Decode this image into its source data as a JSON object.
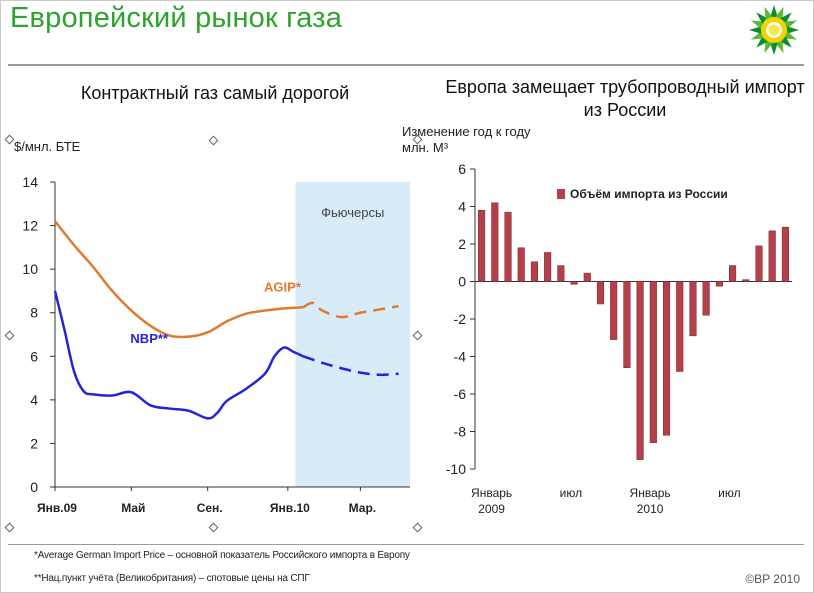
{
  "title": "Европейский рынок газа",
  "copyright": "©BP 2010",
  "footnotes": [
    "*Average German Import Price – основной показатель Российского импорта в Европу",
    "**Нац.пункт учёта (Великобритания) – спотовые цены на СПГ"
  ],
  "logo_icon": "bp-helios-logo",
  "colors": {
    "title": "#2ea32e",
    "agip": "#e07a30",
    "nbp": "#2424d8",
    "bars": "#b3404a",
    "futures_band": "#d7ebf9"
  },
  "left_chart": {
    "subtitle": "Контрактный газ самый дорогой",
    "unit": "$/мнл. БТЕ",
    "futures_label": "Фьючерсы"
  },
  "right_chart": {
    "subtitle": "Европа замещает трубопроводный импорт из России",
    "unit_line1": "Изменение год к году",
    "unit_line2": "млн. М³"
  },
  "chart_data": [
    {
      "type": "line",
      "title": "Контрактный газ самый дорогой",
      "ylabel": "$/мнл. БТЕ",
      "ylim": [
        0,
        14
      ],
      "yticks": [
        0,
        2,
        4,
        6,
        8,
        10,
        12,
        14
      ],
      "x_tick_labels": [
        "Янв.09",
        "Май",
        "Сен.",
        "Янв.10",
        "Мар."
      ],
      "futures_from": 12.6,
      "futures_label": "Фьючерсы",
      "series": [
        {
          "name": "AGIP*",
          "color": "#e07a30",
          "x": [
            0,
            1,
            2,
            3,
            4,
            5,
            6,
            7,
            8,
            9,
            10,
            11,
            12,
            13
          ],
          "y": [
            12.2,
            11.1,
            10.1,
            9.0,
            8.1,
            7.4,
            6.95,
            6.9,
            7.1,
            7.6,
            7.95,
            8.1,
            8.2,
            8.25
          ],
          "forecast_x": [
            13,
            13.5,
            14,
            15,
            16,
            17,
            18
          ],
          "forecast_y": [
            8.25,
            8.45,
            8.1,
            7.8,
            8.0,
            8.15,
            8.3
          ]
        },
        {
          "name": "NBP**",
          "color": "#2424d8",
          "x": [
            0,
            0.5,
            1,
            1.5,
            2,
            3,
            4,
            5,
            6,
            7,
            8,
            8.5,
            9,
            10,
            11,
            11.5,
            12,
            12.5,
            13
          ],
          "y": [
            9.0,
            7.2,
            5.3,
            4.4,
            4.25,
            4.2,
            4.35,
            3.75,
            3.6,
            3.5,
            3.15,
            3.4,
            3.95,
            4.5,
            5.2,
            6.0,
            6.4,
            6.2,
            6.0
          ],
          "forecast_x": [
            13,
            14,
            15,
            16,
            17,
            18
          ],
          "forecast_y": [
            6.0,
            5.7,
            5.45,
            5.25,
            5.15,
            5.2
          ]
        }
      ]
    },
    {
      "type": "bar",
      "title": "Европа замещает трубопроводный импорт из России",
      "ylabel": "Изменение год к году млн. М³",
      "ylim": [
        -10,
        6
      ],
      "yticks": [
        -10,
        -8,
        -6,
        -4,
        -2,
        0,
        2,
        4,
        6
      ],
      "x_tick_labels": [
        "Январь 2009",
        "июл",
        "Январь 2010",
        "июл"
      ],
      "legend": "top-right",
      "series": [
        {
          "name": "Объём импорта из России",
          "values": [
            3.8,
            4.2,
            3.7,
            1.8,
            1.05,
            1.55,
            0.85,
            -0.15,
            0.45,
            -1.2,
            -3.1,
            -4.6,
            -9.5,
            -8.6,
            -8.2,
            -4.8,
            -2.9,
            -1.8,
            -0.25,
            0.85,
            0.1,
            1.9,
            2.7,
            2.9
          ]
        }
      ]
    }
  ]
}
